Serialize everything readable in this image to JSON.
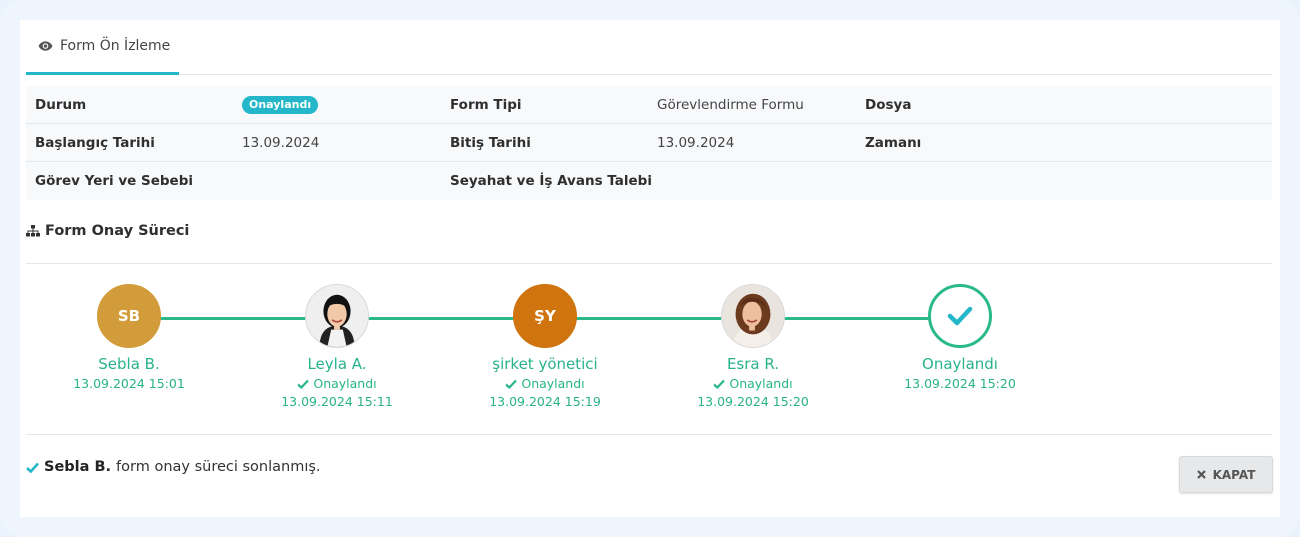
{
  "tab": {
    "label": "Form Ön İzleme",
    "icon": "eye-icon"
  },
  "info": {
    "rows": [
      [
        {
          "label": "Durum",
          "badge": "Onaylandı"
        },
        {
          "label": "Form Tipi",
          "value": "Görevlendirme Formu"
        },
        {
          "label": "Dosya"
        }
      ],
      [
        {
          "label": "Başlangıç Tarihi",
          "value": "13.09.2024"
        },
        {
          "label": "Bitiş Tarihi",
          "value": "13.09.2024"
        },
        {
          "label": "Zamanı"
        }
      ],
      [
        {
          "label": "Görev Yeri ve Sebebi"
        },
        {
          "label": "Seyahat ve İş Avans Talebi"
        }
      ]
    ]
  },
  "process": {
    "title": "Form Onay Süreci",
    "icon": "sitemap-icon",
    "steps": [
      {
        "initials": "SB",
        "color": "#d39c3b",
        "name": "Sebla B.",
        "status": "",
        "date": "13.09.2024 15:01",
        "type": "initials"
      },
      {
        "initials": "",
        "color": "#e6e6e6",
        "name": "Leyla A.",
        "status": "Onaylandı",
        "date": "13.09.2024 15:11",
        "type": "photo-woman-dark-hair"
      },
      {
        "initials": "ŞY",
        "color": "#d07410",
        "name": "şirket yönetici",
        "status": "Onaylandı",
        "date": "13.09.2024 15:19",
        "type": "initials"
      },
      {
        "initials": "",
        "color": "#e6e6e6",
        "name": "Esra R.",
        "status": "Onaylandı",
        "date": "13.09.2024 15:20",
        "type": "photo-woman-curly-hair"
      },
      {
        "initials": "",
        "color": "#ffffff",
        "name": "Onaylandı",
        "status": "",
        "date": "13.09.2024 15:20",
        "type": "check"
      }
    ],
    "line_color": "#2bb98a"
  },
  "footer": {
    "name": "Sebla B.",
    "message": "form onay süreci sonlanmış.",
    "close_label": "KAPAT"
  },
  "colors": {
    "accent": "#23b7c9",
    "success": "#28b38a"
  }
}
